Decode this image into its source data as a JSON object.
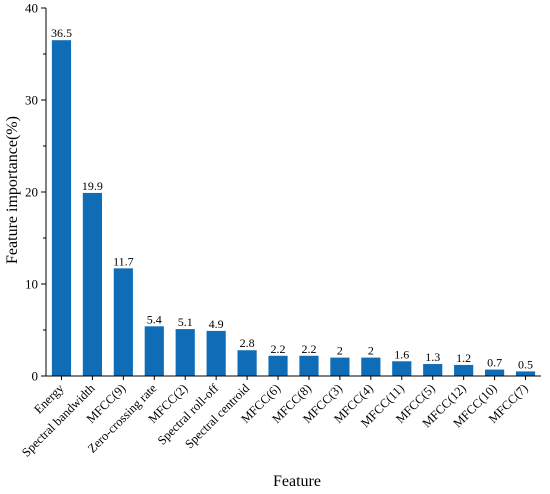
{
  "chart_data": {
    "type": "bar",
    "title": "",
    "xlabel": "Feature",
    "ylabel": "Feature importance(%)",
    "ylim": [
      0,
      40
    ],
    "yticks": [
      0,
      10,
      20,
      30,
      40
    ],
    "grid": false,
    "legend": "none",
    "bar_color": "#0f6db7",
    "categories": [
      "Energy",
      "Spectral bandwidth",
      "MFCC(9)",
      "Zero-crossing rate",
      "MFCC(2)",
      "Spectral roll-off",
      "Spectral centroid",
      "MFCC(6)",
      "MFCC(8)",
      "MFCC(3)",
      "MFCC(4)",
      "MFCC(11)",
      "MFCC(5)",
      "MFCC(12)",
      "MFCC(10)",
      "MFCC(7)"
    ],
    "values": [
      36.5,
      19.9,
      11.7,
      5.4,
      5.1,
      4.9,
      2.8,
      2.2,
      2.2,
      2,
      2,
      1.6,
      1.3,
      1.2,
      0.7,
      0.5
    ],
    "data_labels": [
      "36.5",
      "19.9",
      "11.7",
      "5.4",
      "5.1",
      "4.9",
      "2.8",
      "2.2",
      "2.2",
      "2",
      "2",
      "1.6",
      "1.3",
      "1.2",
      "0.7",
      "0.5"
    ]
  }
}
